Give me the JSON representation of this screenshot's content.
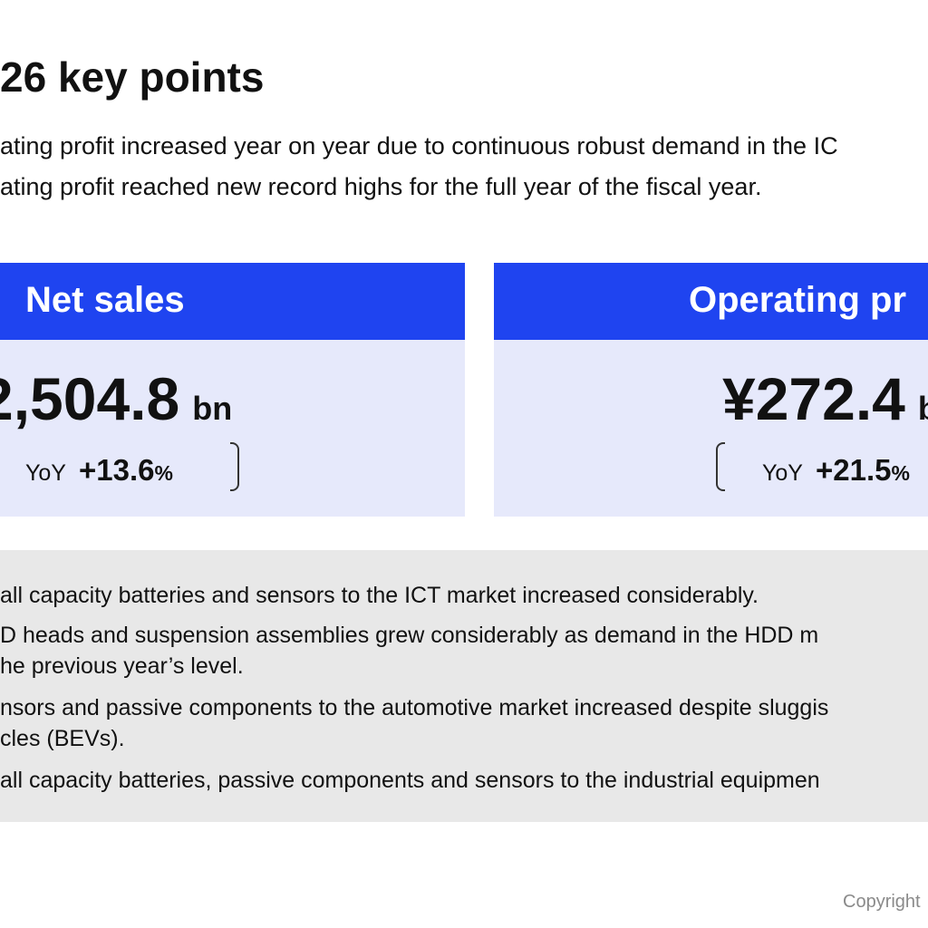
{
  "title": "26 key points",
  "summary": [
    "ating profit increased year on year due to continuous robust demand in the IC",
    "ating profit reached new record highs for the full year of the fiscal year."
  ],
  "cards": {
    "net_sales": {
      "header": "Net sales",
      "value": "2,504.8",
      "unit": "bn",
      "yoy_label": "YoY",
      "yoy_value": "+13.6",
      "yoy_unit": "%"
    },
    "operating_profit": {
      "header": "Operating pr",
      "value": "¥272.4",
      "unit": "b",
      "yoy_label": "YoY",
      "yoy_value": "+21.5",
      "yoy_unit": "%"
    }
  },
  "details": [
    "all capacity batteries and sensors to the ICT market increased considerably.",
    "D heads and suspension assemblies grew considerably as demand in the HDD m",
    "he previous year’s level.",
    "nsors and passive components to the automotive market increased despite sluggis",
    "cles (BEVs).",
    "all capacity batteries, passive components and sensors to the industrial equipmen"
  ],
  "copyright": "Copyright",
  "colors": {
    "header_blue": "#1f44f0",
    "card_bg": "#e6e9fb",
    "details_bg": "#e8e8e8"
  }
}
